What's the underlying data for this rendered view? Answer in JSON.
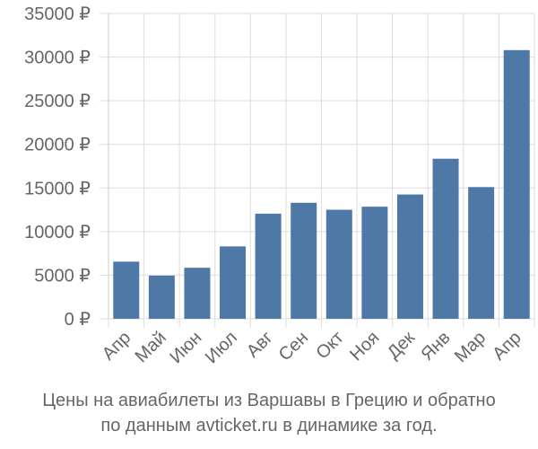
{
  "chart_data": {
    "type": "bar",
    "categories": [
      "Апр",
      "Май",
      "Июн",
      "Июл",
      "Авг",
      "Сен",
      "Окт",
      "Ноя",
      "Дек",
      "Янв",
      "Мар",
      "Апр"
    ],
    "values": [
      6550,
      4950,
      5850,
      8300,
      12050,
      13300,
      12500,
      12850,
      14250,
      18350,
      15100,
      30800
    ],
    "ylim": [
      0,
      35000
    ],
    "yticks": [
      0,
      5000,
      10000,
      15000,
      20000,
      25000,
      30000,
      35000
    ],
    "ytick_suffix": " ₽",
    "grid": true,
    "bar_color": "#4e79a7",
    "grid_color": "#dddddd",
    "caption_line1": "Цены на авиабилеты из Варшавы в Грецию и обратно",
    "caption_line2": "по данным avticket.ru в динамике за год."
  }
}
